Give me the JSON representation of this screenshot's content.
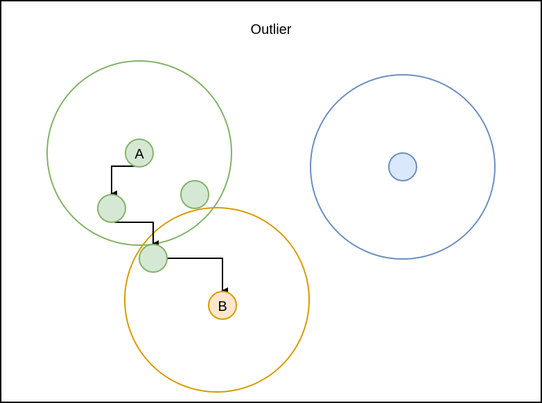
{
  "title": "Outlier",
  "colors": {
    "frame_stroke": "#000000",
    "cluster_green_stroke": "#82b366",
    "cluster_green_fill": "#d5e8d4",
    "cluster_orange_stroke": "#d79b00",
    "cluster_orange_fill": "#ffe6cc",
    "cluster_blue_stroke": "#6c8ebf",
    "cluster_blue_fill": "#dae8fc",
    "arrow": "#000000"
  },
  "nodes": {
    "a_label": "A",
    "b_label": "B"
  }
}
